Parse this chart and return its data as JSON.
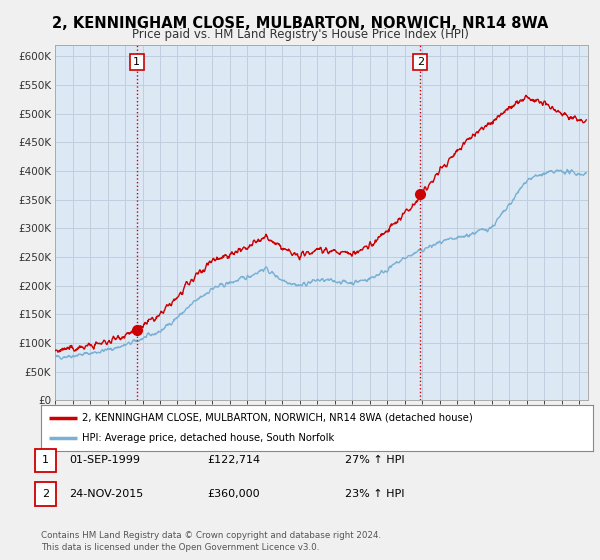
{
  "title": "2, KENNINGHAM CLOSE, MULBARTON, NORWICH, NR14 8WA",
  "subtitle": "Price paid vs. HM Land Registry's House Price Index (HPI)",
  "background_color": "#f0f0f0",
  "plot_bg_color": "#dce9f5",
  "grid_color": "#c0cfe0",
  "ylim": [
    0,
    620000
  ],
  "yticks": [
    0,
    50000,
    100000,
    150000,
    200000,
    250000,
    300000,
    350000,
    400000,
    450000,
    500000,
    550000,
    600000
  ],
  "ytick_labels": [
    "£0",
    "£50K",
    "£100K",
    "£150K",
    "£200K",
    "£250K",
    "£300K",
    "£350K",
    "£400K",
    "£450K",
    "£500K",
    "£550K",
    "£600K"
  ],
  "sale1_date": "01-SEP-1999",
  "sale1_price": 122714,
  "sale1_pct": "27%",
  "sale1_year": 1999.67,
  "sale2_date": "24-NOV-2015",
  "sale2_price": 360000,
  "sale2_pct": "23%",
  "sale2_year": 2015.9,
  "red_line_color": "#cc0000",
  "blue_line_color": "#7ab0d4",
  "vline_color": "#cc0000",
  "legend_label1": "2, KENNINGHAM CLOSE, MULBARTON, NORWICH, NR14 8WA (detached house)",
  "legend_label2": "HPI: Average price, detached house, South Norfolk",
  "footer": "Contains HM Land Registry data © Crown copyright and database right 2024.\nThis data is licensed under the Open Government Licence v3.0.",
  "xmin": 1995,
  "xmax": 2025.5,
  "hpi_anchors_x": [
    1995,
    1996,
    1997,
    1998,
    1999,
    2000,
    2001,
    2002,
    2003,
    2004,
    2005,
    2006,
    2007,
    2008,
    2009,
    2010,
    2011,
    2012,
    2013,
    2014,
    2015,
    2016,
    2017,
    2018,
    2019,
    2020,
    2021,
    2022,
    2023,
    2024,
    2025
  ],
  "hpi_anchors_y": [
    75000,
    78000,
    82000,
    88000,
    96000,
    108000,
    120000,
    145000,
    172000,
    195000,
    205000,
    215000,
    230000,
    210000,
    200000,
    210000,
    208000,
    205000,
    212000,
    228000,
    248000,
    262000,
    275000,
    282000,
    292000,
    302000,
    340000,
    385000,
    395000,
    400000,
    395000
  ],
  "red_anchors_x": [
    1995,
    1996,
    1997,
    1998,
    1999,
    2000,
    2001,
    2002,
    2003,
    2004,
    2005,
    2006,
    2007,
    2008,
    2009,
    2010,
    2011,
    2012,
    2013,
    2014,
    2015,
    2016,
    2017,
    2018,
    2019,
    2020,
    2021,
    2022,
    2023,
    2024,
    2025
  ],
  "red_anchors_y": [
    87000,
    90000,
    95000,
    102000,
    115000,
    130000,
    148000,
    180000,
    215000,
    245000,
    255000,
    265000,
    285000,
    265000,
    250000,
    265000,
    260000,
    255000,
    270000,
    295000,
    325000,
    360000,
    400000,
    435000,
    465000,
    485000,
    510000,
    530000,
    515000,
    500000,
    490000
  ]
}
